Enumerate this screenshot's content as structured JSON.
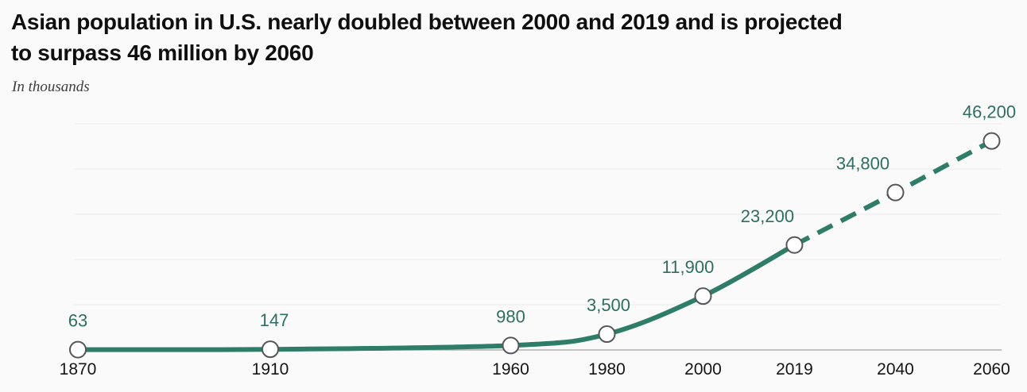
{
  "chart_data": {
    "type": "line",
    "title": "Asian population in U.S. nearly doubled between 2000 and 2019 and is projected to surpass 46 million by 2060",
    "title_lines": [
      "Asian population in U.S. nearly doubled between 2000 and 2019 and is projected",
      "to surpass 46 million by 2060"
    ],
    "subtitle": "In thousands",
    "x": [
      1870,
      1910,
      1960,
      1980,
      2000,
      2019,
      2040,
      2060
    ],
    "values": [
      63,
      147,
      980,
      3500,
      11900,
      23200,
      34800,
      46200
    ],
    "point_labels": [
      "63",
      "147",
      "980",
      "3,500",
      "11,900",
      "23,200",
      "34,800",
      "46,200"
    ],
    "x_tick_labels": [
      "1870",
      "1910",
      "1960",
      "1980",
      "2000",
      "2019",
      "2040",
      "2060"
    ],
    "projected_from_x": 2019,
    "projected_style": "dashed",
    "xlabel": "",
    "ylabel": "",
    "ylim": [
      0,
      50000
    ],
    "gridline_step": 10000,
    "grid": true,
    "legend_position": "none",
    "colors": {
      "line": "#2e7d68",
      "point_label": "#2d6f62",
      "marker_fill": "#ffffff",
      "marker_stroke": "#55565a",
      "gridline": "#ebe9e9",
      "axis_line": "#a3a1a1",
      "title": "#0f0f0f",
      "subtitle": "#3e3e3e",
      "tick_label": "#151515",
      "background": "#fbfafa"
    }
  }
}
